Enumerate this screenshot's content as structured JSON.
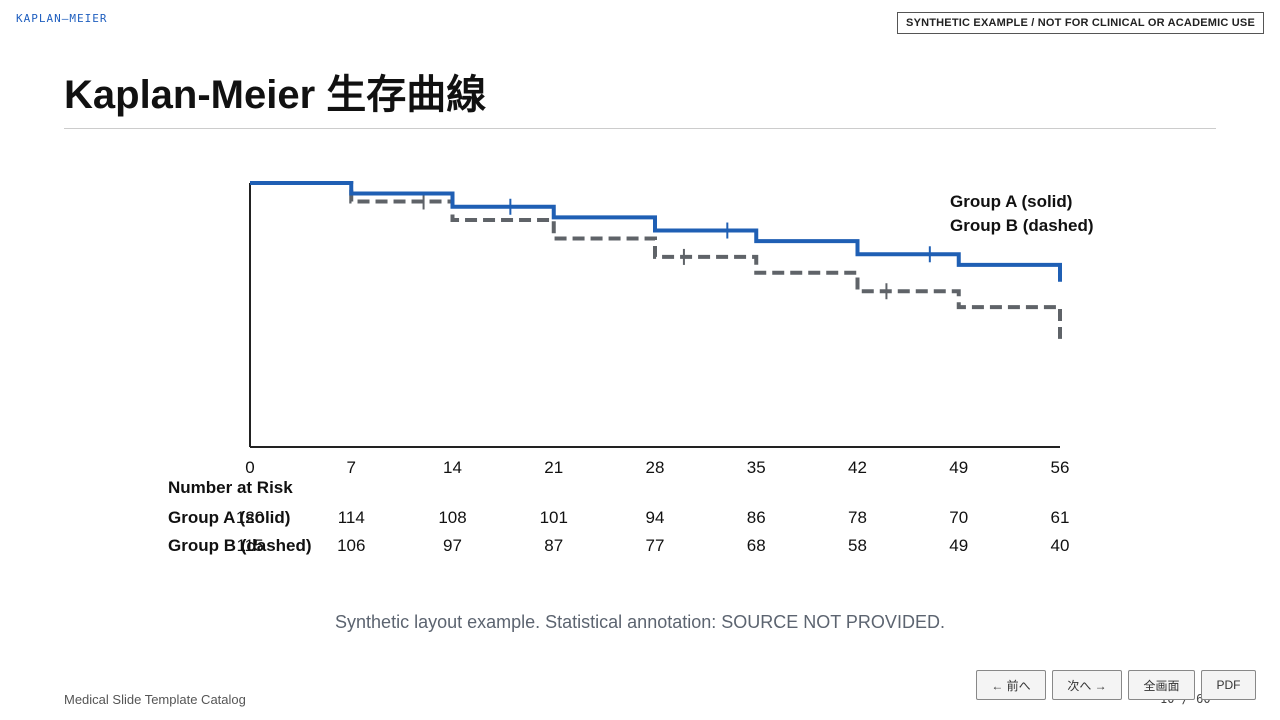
{
  "header": {
    "corner_label": "KAPLAN–MEIER",
    "disclaimer": "SYNTHETIC EXAMPLE / NOT FOR CLINICAL OR ACADEMIC USE",
    "title": "Kaplan-Meier 生存曲線"
  },
  "chart_data": {
    "type": "line",
    "step": true,
    "x_ticks": [
      0,
      7,
      14,
      21,
      28,
      35,
      42,
      49,
      56
    ],
    "xlim": [
      0,
      56
    ],
    "ylim": [
      0,
      1
    ],
    "y_axis_labels_shown": false,
    "grid": false,
    "legend_position": "top-right",
    "series": [
      {
        "name": "Group A (solid)",
        "color": "#1f5fb4",
        "style": "solid",
        "x": [
          0,
          7,
          14,
          21,
          28,
          35,
          42,
          49,
          56
        ],
        "y": [
          1.0,
          0.96,
          0.91,
          0.87,
          0.82,
          0.78,
          0.73,
          0.69,
          0.66
        ],
        "censor_x": [
          18,
          33,
          47
        ]
      },
      {
        "name": "Group B (dashed)",
        "color": "#5f6368",
        "style": "dashed",
        "x": [
          0,
          7,
          14,
          21,
          28,
          35,
          42,
          49,
          56
        ],
        "y": [
          1.0,
          0.93,
          0.86,
          0.79,
          0.72,
          0.66,
          0.59,
          0.53,
          0.47
        ],
        "censor_x": [
          12,
          30,
          44
        ]
      }
    ]
  },
  "risk_table": {
    "title": "Number at Risk",
    "rows": [
      {
        "label": "Group A (solid)",
        "values": [
          120,
          114,
          108,
          101,
          94,
          86,
          78,
          70,
          61
        ]
      },
      {
        "label": "Group B (dashed)",
        "values": [
          115,
          106,
          97,
          87,
          77,
          68,
          58,
          49,
          40
        ]
      }
    ]
  },
  "caption": "Synthetic layout example. Statistical annotation: SOURCE NOT PROVIDED.",
  "footer": {
    "catalog": "Medical Slide Template Catalog",
    "page": "10 / 60"
  },
  "nav": {
    "prev": "← 前へ",
    "next": "次へ →",
    "fullscreen": "全画面",
    "pdf": "PDF"
  }
}
